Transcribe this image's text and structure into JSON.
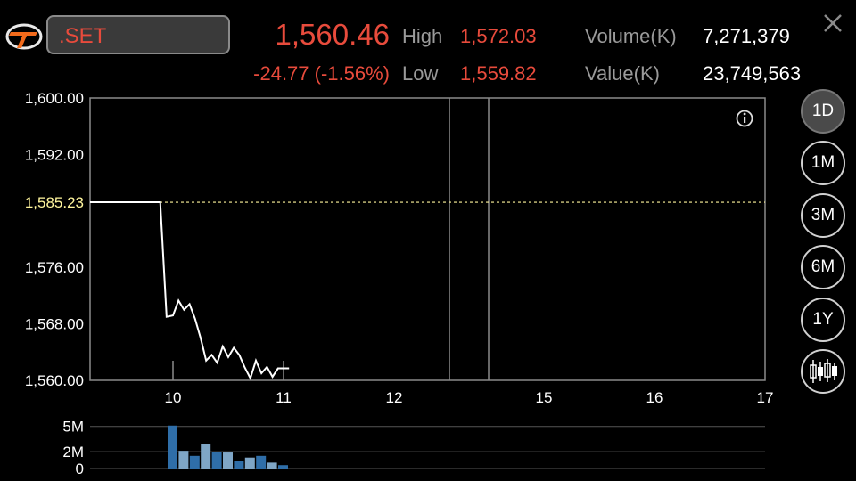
{
  "header": {
    "symbol": ".SET",
    "last_price": "1,560.46",
    "change": "-24.77 (-1.56%)",
    "high_label": "High",
    "high_value": "1,572.03",
    "low_label": "Low",
    "low_value": "1,559.82",
    "volume_label": "Volume(K)",
    "volume_value": "7,271,379",
    "value_label": "Value(K)",
    "value_value": "23,749,563"
  },
  "periods": [
    {
      "label": "1D",
      "active": true
    },
    {
      "label": "1M",
      "active": false
    },
    {
      "label": "3M",
      "active": false
    },
    {
      "label": "6M",
      "active": false
    },
    {
      "label": "1Y",
      "active": false
    }
  ],
  "icons": [
    "brand-logo-icon",
    "close-icon",
    "info-icon",
    "candlestick-icon"
  ],
  "colors": {
    "up_down": "#e84b3c",
    "reference": "#fff59d",
    "volume": "#2f6ea8"
  },
  "chart_data": [
    {
      "type": "line",
      "y_ticks": [
        "1,600.00",
        "1,592.00",
        "1,576.00",
        "1,568.00",
        "1,560.00"
      ],
      "reference_label": "1,585.23",
      "x_ticks": [
        "10",
        "11",
        "12",
        "15",
        "16",
        "17"
      ],
      "reference_value": 1585.23,
      "ylim": [
        1560,
        1600
      ],
      "xlim": [
        9.35,
        17
      ],
      "x": [
        9.35,
        9.9,
        9.95,
        10.0,
        10.05,
        10.1,
        10.15,
        10.2,
        10.25,
        10.3,
        10.35,
        10.4,
        10.45,
        10.5,
        10.55,
        10.6,
        10.65,
        10.7,
        10.75,
        10.8,
        10.85,
        10.9,
        10.95,
        11.0,
        11.05
      ],
      "y": [
        1585.23,
        1585.23,
        1569.0,
        1569.2,
        1571.3,
        1570.0,
        1570.8,
        1568.7,
        1566.0,
        1562.8,
        1563.6,
        1562.5,
        1564.8,
        1563.3,
        1564.6,
        1563.6,
        1561.8,
        1560.3,
        1562.8,
        1561.0,
        1561.9,
        1560.5,
        1561.7,
        1561.7,
        1561.7
      ],
      "grid": "vertical lines at session breaks",
      "breaks": [
        10.0,
        11.0,
        12.5,
        14.85
      ]
    },
    {
      "type": "bar",
      "y_ticks": [
        "5M",
        "2M",
        "0"
      ],
      "ylim": [
        0,
        5.5
      ],
      "bar_x": [
        10.0,
        10.1,
        10.2,
        10.3,
        10.4,
        10.5,
        10.6,
        10.7,
        10.8,
        10.9,
        11.0
      ],
      "values": [
        5.1,
        2.1,
        1.5,
        2.9,
        2.0,
        1.9,
        0.9,
        1.3,
        1.5,
        0.7,
        0.4
      ]
    }
  ]
}
